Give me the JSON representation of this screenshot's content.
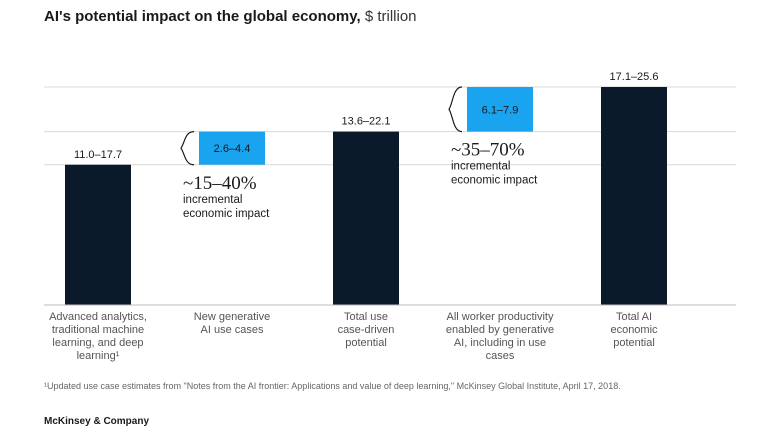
{
  "chart_data": {
    "type": "bar",
    "title_bold": "AI's potential impact on the global economy,",
    "title_unit": "$ trillion",
    "bars": [
      {
        "category_lines": [
          "Advanced analytics,",
          "traditional machine",
          "learning, and deep",
          "learning¹"
        ],
        "low": 0,
        "high": 11.0,
        "label": "11.0–17.7",
        "style": "dark"
      },
      {
        "category_lines": [
          "New generative",
          "AI use cases"
        ],
        "low": 11.0,
        "high": 13.6,
        "label": "2.6–4.4",
        "style": "light"
      },
      {
        "category_lines": [
          "Total use",
          "case-driven",
          "potential"
        ],
        "low": 0,
        "high": 13.6,
        "label": "13.6–22.1",
        "style": "dark"
      },
      {
        "category_lines": [
          "All worker productivity",
          "enabled by generative",
          "AI, including in use",
          "cases"
        ],
        "low": 13.6,
        "high": 17.1,
        "label": "6.1–7.9",
        "style": "light"
      },
      {
        "category_lines": [
          "Total AI",
          "economic",
          "potential"
        ],
        "low": 0,
        "high": 17.1,
        "label": "17.1–25.6",
        "style": "dark"
      }
    ],
    "annotations": [
      {
        "bar_index": 1,
        "pct": "~15–40%",
        "text_lines": [
          "incremental",
          "economic impact"
        ]
      },
      {
        "bar_index": 3,
        "pct": "~35–70%",
        "text_lines": [
          "incremental",
          "economic impact"
        ]
      }
    ],
    "colors": {
      "dark": "#0b1a2b",
      "light": "#1aa3ef",
      "axis": "#bbbbbb",
      "guide": "#d8d8d8"
    }
  },
  "footnote": "¹Updated use case estimates from \"Notes from the AI frontier: Applications and value of deep learning,\" McKinsey Global Institute, April 17, 2018.",
  "brand": "McKinsey & Company"
}
